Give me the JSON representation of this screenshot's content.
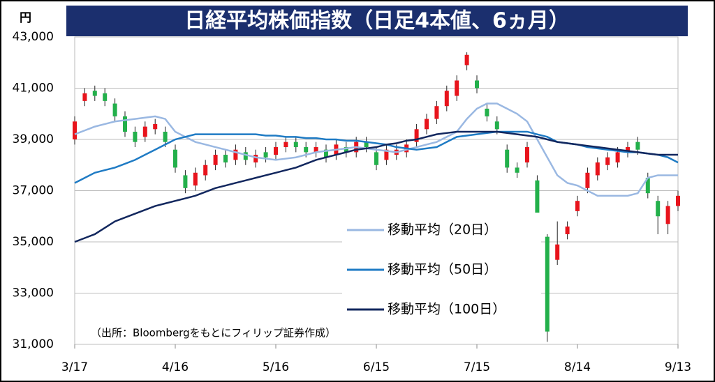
{
  "chart_data": {
    "type": "candlestick",
    "title": "日経平均株価指数（日足4本値、6ヵ月）",
    "y_unit": "円",
    "note": "（出所：Bloombergをもとにフィリップ証券作成）",
    "x": [
      0,
      3,
      6,
      9,
      12,
      15,
      18,
      21,
      24,
      27,
      30,
      33,
      36,
      39,
      42,
      45,
      48,
      51,
      54,
      57,
      60,
      63,
      66,
      69,
      72,
      75,
      78,
      81,
      84,
      87,
      90,
      93,
      96,
      99,
      102,
      105,
      108,
      111,
      114,
      117,
      120,
      123,
      126,
      129,
      132,
      135,
      138,
      141,
      144,
      147,
      150,
      153,
      156,
      159,
      162,
      165,
      168,
      171,
      174,
      177,
      180
    ],
    "open": [
      39000,
      40500,
      40900,
      40800,
      40400,
      39900,
      39300,
      39100,
      39400,
      39300,
      38600,
      37600,
      37200,
      37600,
      38000,
      38400,
      38200,
      38500,
      38100,
      38500,
      38400,
      38700,
      38900,
      38700,
      38500,
      38600,
      38400,
      38700,
      38500,
      38900,
      38500,
      38200,
      38400,
      38500,
      38900,
      39400,
      39800,
      40300,
      40700,
      41900,
      41300,
      40200,
      39700,
      38600,
      37900,
      38100,
      37400,
      35200,
      34300,
      35300,
      36200,
      37100,
      37600,
      38000,
      38100,
      38500,
      38900,
      37500,
      36600,
      35700,
      36400
    ],
    "close": [
      39700,
      40800,
      40700,
      40500,
      39900,
      39300,
      38900,
      39500,
      39600,
      38900,
      37900,
      37100,
      37700,
      38000,
      38400,
      38100,
      38600,
      38200,
      38400,
      38300,
      38700,
      38900,
      38700,
      38500,
      38700,
      38300,
      38800,
      38500,
      38900,
      38700,
      38000,
      38600,
      38600,
      38800,
      39400,
      39800,
      40300,
      40900,
      41300,
      42300,
      41000,
      39900,
      39400,
      37900,
      37700,
      38700,
      35900,
      31500,
      34900,
      35600,
      36600,
      37700,
      38100,
      38300,
      38500,
      38700,
      38600,
      36900,
      36000,
      36400,
      36800
    ],
    "high": [
      39900,
      41000,
      41100,
      41000,
      40600,
      40100,
      39500,
      39700,
      39800,
      39500,
      38800,
      37800,
      37900,
      38200,
      38600,
      38600,
      38800,
      38700,
      38600,
      38700,
      38900,
      39100,
      39100,
      38900,
      38900,
      38800,
      39000,
      38900,
      39100,
      39100,
      38700,
      38800,
      38800,
      39000,
      39600,
      40000,
      40500,
      41100,
      41500,
      42400,
      41500,
      40400,
      39900,
      38800,
      38100,
      38900,
      37600,
      35300,
      35800,
      35800,
      36800,
      37900,
      38300,
      38500,
      38700,
      38900,
      39100,
      37700,
      36800,
      36600,
      37000
    ],
    "low": [
      38800,
      40300,
      40500,
      40300,
      39700,
      39100,
      38700,
      38900,
      39200,
      38700,
      37700,
      36900,
      37000,
      37400,
      37800,
      37900,
      38000,
      38000,
      37900,
      38100,
      38200,
      38500,
      38500,
      38300,
      38300,
      38100,
      38200,
      38300,
      38300,
      38500,
      37800,
      38000,
      38200,
      38300,
      38700,
      39200,
      39600,
      40100,
      40500,
      41700,
      40800,
      39700,
      39200,
      37700,
      37500,
      37900,
      35700,
      31100,
      34100,
      35100,
      36000,
      36900,
      37400,
      37800,
      37900,
      38300,
      38400,
      36700,
      35300,
      35300,
      36200
    ],
    "up_color": "#e8141c",
    "down_color": "#23b04b",
    "series": [
      {
        "name": "移動平均（20日）",
        "color": "#9ab8e2",
        "values": [
          39200,
          39350,
          39500,
          39600,
          39700,
          39750,
          39800,
          39850,
          39900,
          39800,
          39300,
          39100,
          38900,
          38800,
          38700,
          38600,
          38500,
          38400,
          38300,
          38250,
          38200,
          38250,
          38300,
          38400,
          38500,
          38550,
          38600,
          38650,
          38700,
          38650,
          38600,
          38550,
          38500,
          38600,
          38700,
          38800,
          38900,
          39100,
          39300,
          39800,
          40200,
          40400,
          40400,
          40200,
          40000,
          39700,
          39000,
          38300,
          37600,
          37300,
          37200,
          37000,
          36800,
          36800,
          36800,
          36800,
          36900,
          37500,
          37600,
          37600,
          37600
        ]
      },
      {
        "name": "移動平均（50日）",
        "color": "#1f7bc4",
        "values": [
          37300,
          37500,
          37700,
          37800,
          37900,
          38050,
          38200,
          38400,
          38600,
          38800,
          39000,
          39100,
          39200,
          39200,
          39200,
          39200,
          39200,
          39200,
          39200,
          39150,
          39150,
          39100,
          39100,
          39050,
          39050,
          39000,
          39000,
          38950,
          38950,
          38900,
          38850,
          38800,
          38700,
          38650,
          38600,
          38650,
          38700,
          38900,
          39100,
          39150,
          39200,
          39250,
          39300,
          39300,
          39300,
          39300,
          39200,
          39100,
          38900,
          38850,
          38800,
          38700,
          38650,
          38600,
          38550,
          38500,
          38500,
          38450,
          38400,
          38300,
          38100
        ]
      },
      {
        "name": "移動平均（100日）",
        "color": "#12275e",
        "values": [
          35000,
          35150,
          35300,
          35550,
          35800,
          35950,
          36100,
          36250,
          36400,
          36500,
          36600,
          36700,
          36800,
          36950,
          37100,
          37200,
          37300,
          37400,
          37500,
          37600,
          37700,
          37800,
          37900,
          38050,
          38200,
          38300,
          38400,
          38500,
          38600,
          38650,
          38700,
          38800,
          38850,
          38950,
          39000,
          39100,
          39200,
          39250,
          39300,
          39300,
          39300,
          39300,
          39300,
          39250,
          39200,
          39150,
          39100,
          39000,
          38900,
          38850,
          38800,
          38750,
          38700,
          38650,
          38600,
          38550,
          38500,
          38450,
          38400,
          38400,
          38400
        ]
      }
    ],
    "xlim": [
      0,
      180
    ],
    "xticks": [
      {
        "value": 0,
        "label": "3/17"
      },
      {
        "value": 30,
        "label": "4/16"
      },
      {
        "value": 60,
        "label": "5/16"
      },
      {
        "value": 90,
        "label": "6/15"
      },
      {
        "value": 120,
        "label": "7/15"
      },
      {
        "value": 150,
        "label": "8/14"
      },
      {
        "value": 180,
        "label": "9/13"
      }
    ],
    "ylim": [
      31000,
      43000
    ],
    "yticks": [
      {
        "value": 31000,
        "label": "31,000"
      },
      {
        "value": 33000,
        "label": "33,000"
      },
      {
        "value": 35000,
        "label": "35,000"
      },
      {
        "value": 37000,
        "label": "37,000"
      },
      {
        "value": 39000,
        "label": "39,000"
      },
      {
        "value": 41000,
        "label": "41,000"
      },
      {
        "value": 43000,
        "label": "43,000"
      }
    ],
    "grid": true
  }
}
